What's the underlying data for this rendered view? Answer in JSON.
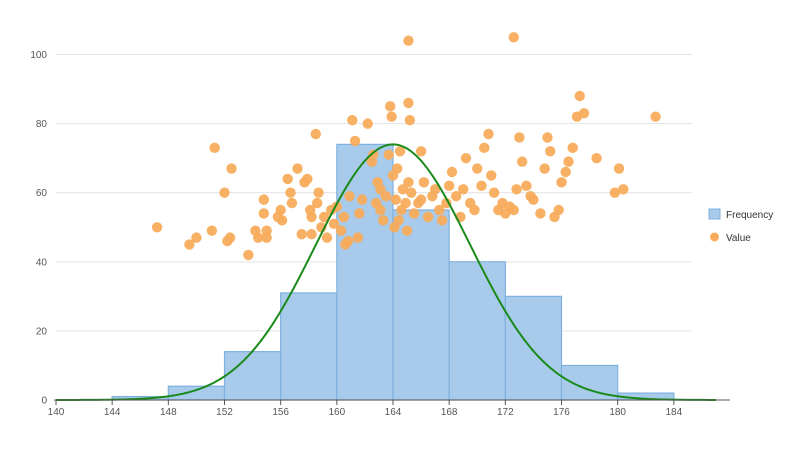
{
  "chart_data": {
    "type": "bar",
    "subtype": "histogram with scatter overlay and normal curve",
    "title": "",
    "xlabel": "",
    "ylabel": "",
    "xlim": [
      140,
      188
    ],
    "ylim": [
      0,
      110
    ],
    "x_ticks": [
      140,
      144,
      148,
      152,
      156,
      160,
      164,
      168,
      172,
      176,
      180,
      184
    ],
    "y_ticks": [
      0,
      20,
      40,
      60,
      80,
      100
    ],
    "grid": "horizontal",
    "legend_position": "right",
    "colors": {
      "bar_fill": "#a8cbeb",
      "bar_stroke": "#7fb0dd",
      "point": "#f7ac5c",
      "curve": "#1a8a1a",
      "grid": "#e2e2e2",
      "axis": "#555555"
    },
    "series": [
      {
        "name": "Frequency",
        "type": "histogram",
        "bins": [
          {
            "start": 144,
            "end": 148,
            "value": 1
          },
          {
            "start": 148,
            "end": 152,
            "value": 4
          },
          {
            "start": 152,
            "end": 156,
            "value": 14
          },
          {
            "start": 156,
            "end": 160,
            "value": 31
          },
          {
            "start": 160,
            "end": 164,
            "value": 74
          },
          {
            "start": 164,
            "end": 168,
            "value": 55
          },
          {
            "start": 168,
            "end": 172,
            "value": 40
          },
          {
            "start": 172,
            "end": 176,
            "value": 30
          },
          {
            "start": 176,
            "end": 180,
            "value": 10
          },
          {
            "start": 180,
            "end": 184,
            "value": 2
          }
        ]
      },
      {
        "name": "Value",
        "type": "scatter",
        "points": [
          [
            147.2,
            50
          ],
          [
            149.5,
            45
          ],
          [
            150,
            47
          ],
          [
            151.1,
            49
          ],
          [
            151.3,
            73
          ],
          [
            152,
            60
          ],
          [
            152.2,
            46
          ],
          [
            152.4,
            47
          ],
          [
            152.5,
            67
          ],
          [
            153.7,
            42
          ],
          [
            154.2,
            49
          ],
          [
            154.4,
            47
          ],
          [
            154.8,
            54
          ],
          [
            154.8,
            58
          ],
          [
            155,
            47
          ],
          [
            155,
            49
          ],
          [
            155.8,
            53
          ],
          [
            156,
            55
          ],
          [
            156.1,
            52
          ],
          [
            156.5,
            64
          ],
          [
            156.7,
            60
          ],
          [
            156.8,
            57
          ],
          [
            157.2,
            67
          ],
          [
            157.5,
            48
          ],
          [
            157.7,
            63
          ],
          [
            157.9,
            64
          ],
          [
            158.1,
            55
          ],
          [
            158.2,
            48
          ],
          [
            158.2,
            53
          ],
          [
            158.5,
            77
          ],
          [
            158.6,
            57
          ],
          [
            158.7,
            60
          ],
          [
            158.9,
            50
          ],
          [
            159.1,
            53
          ],
          [
            159.3,
            47
          ],
          [
            159.6,
            55
          ],
          [
            159.8,
            51
          ],
          [
            160,
            56
          ],
          [
            160.3,
            49
          ],
          [
            160.5,
            53
          ],
          [
            160.6,
            45
          ],
          [
            160.8,
            46
          ],
          [
            161.1,
            81
          ],
          [
            161.3,
            75
          ],
          [
            160.9,
            59
          ],
          [
            161.5,
            47
          ],
          [
            161.6,
            54
          ],
          [
            161.8,
            58
          ],
          [
            162.2,
            80
          ],
          [
            162.5,
            69
          ],
          [
            162.6,
            71
          ],
          [
            162.9,
            63
          ],
          [
            163.1,
            55
          ],
          [
            163.1,
            61
          ],
          [
            163.3,
            52
          ],
          [
            163.5,
            59
          ],
          [
            163.7,
            71
          ],
          [
            162.8,
            57
          ],
          [
            163.8,
            85
          ],
          [
            163.9,
            82
          ],
          [
            164,
            65
          ],
          [
            164.1,
            50
          ],
          [
            164.2,
            58
          ],
          [
            164.3,
            67
          ],
          [
            164.4,
            52
          ],
          [
            164.5,
            72
          ],
          [
            164.6,
            55
          ],
          [
            164.7,
            61
          ],
          [
            164.9,
            57
          ],
          [
            165,
            49
          ],
          [
            165.1,
            63
          ],
          [
            165.3,
            60
          ],
          [
            165.5,
            54
          ],
          [
            165.8,
            57
          ],
          [
            166,
            72
          ],
          [
            166,
            58
          ],
          [
            166.2,
            63
          ],
          [
            166.5,
            53
          ],
          [
            166.8,
            59
          ],
          [
            167,
            61
          ],
          [
            165.1,
            104
          ],
          [
            165.1,
            86
          ],
          [
            165.2,
            81
          ],
          [
            167.3,
            55
          ],
          [
            167.5,
            52
          ],
          [
            167.8,
            57
          ],
          [
            168,
            62
          ],
          [
            168.2,
            66
          ],
          [
            168.5,
            59
          ],
          [
            168.8,
            53
          ],
          [
            169,
            61
          ],
          [
            169.2,
            70
          ],
          [
            169.5,
            57
          ],
          [
            169.8,
            55
          ],
          [
            170,
            67
          ],
          [
            170.3,
            62
          ],
          [
            170.5,
            73
          ],
          [
            170.8,
            77
          ],
          [
            171,
            65
          ],
          [
            171.2,
            60
          ],
          [
            171.5,
            55
          ],
          [
            171.8,
            57
          ],
          [
            172,
            54
          ],
          [
            172.3,
            56
          ],
          [
            172.6,
            55
          ],
          [
            172.8,
            61
          ],
          [
            173,
            76
          ],
          [
            173.2,
            69
          ],
          [
            173.5,
            62
          ],
          [
            173.8,
            59
          ],
          [
            174,
            58
          ],
          [
            174.5,
            54
          ],
          [
            174.8,
            67
          ],
          [
            175,
            76
          ],
          [
            175.2,
            72
          ],
          [
            175.5,
            53
          ],
          [
            175.8,
            55
          ],
          [
            176,
            63
          ],
          [
            176.3,
            66
          ],
          [
            176.5,
            69
          ],
          [
            176.8,
            73
          ],
          [
            177.1,
            82
          ],
          [
            177.3,
            88
          ],
          [
            177.6,
            83
          ],
          [
            178.5,
            70
          ],
          [
            179.8,
            60
          ],
          [
            180.1,
            67
          ],
          [
            180.4,
            61
          ],
          [
            182.7,
            82
          ],
          [
            172.6,
            105
          ]
        ]
      },
      {
        "name": "Normal curve",
        "type": "line",
        "mean": 164,
        "sd": 5.5,
        "peak": 74,
        "x_range": [
          140,
          187
        ]
      }
    ]
  },
  "legend": {
    "items": [
      {
        "label": "Frequency",
        "symbol": "square"
      },
      {
        "label": "Value",
        "symbol": "circle"
      }
    ]
  }
}
